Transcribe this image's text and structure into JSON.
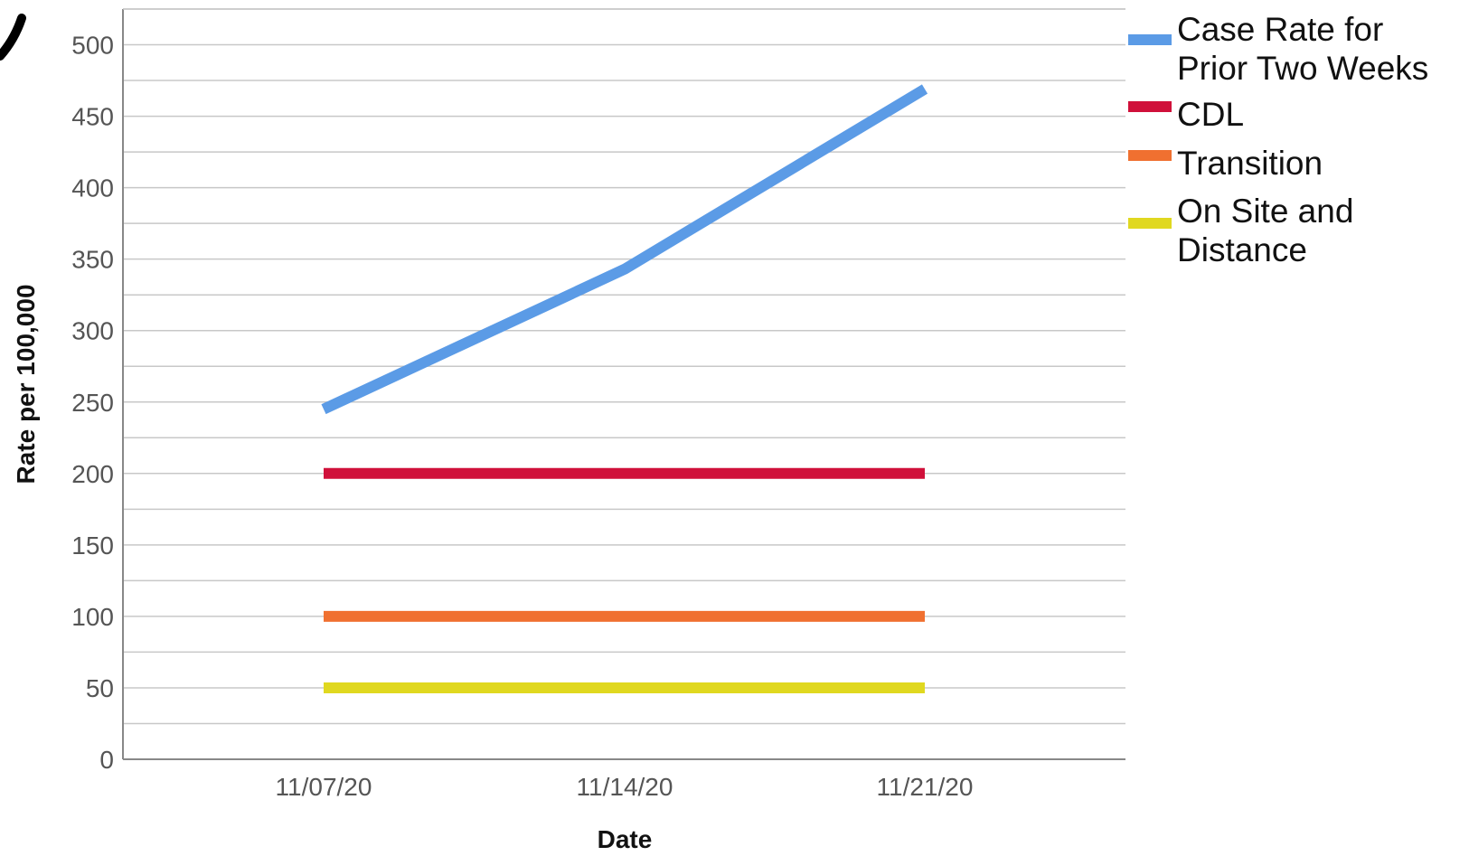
{
  "chart_data": {
    "type": "line",
    "title": "",
    "xlabel": "Date",
    "ylabel": "Rate per 100,000",
    "categories": [
      "11/07/20",
      "11/14/20",
      "11/21/20"
    ],
    "ylim": [
      0,
      525
    ],
    "yticks": [
      0,
      50,
      100,
      150,
      200,
      250,
      300,
      350,
      400,
      450,
      500
    ],
    "grid": true,
    "legend_position": "right",
    "series": [
      {
        "name": "Case Rate for Prior Two Weeks",
        "values": [
          245,
          343,
          469
        ],
        "color": "#5B9BE6"
      },
      {
        "name": "CDL",
        "values": [
          200,
          200,
          200
        ],
        "color": "#D0103A"
      },
      {
        "name": "Transition",
        "values": [
          100,
          100,
          100
        ],
        "color": "#F07030"
      },
      {
        "name": "On Site and Distance",
        "values": [
          50,
          50,
          50
        ],
        "color": "#E0D820"
      }
    ]
  }
}
